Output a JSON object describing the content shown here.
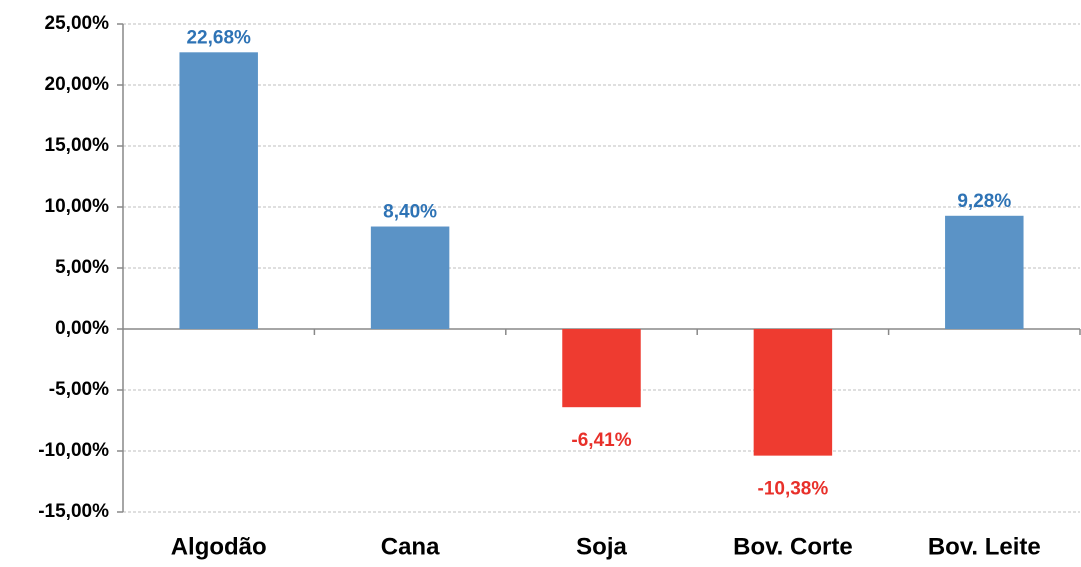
{
  "chart_data": {
    "type": "bar",
    "categories": [
      "Algodão",
      "Cana",
      "Soja",
      "Bov. Corte",
      "Bov. Leite"
    ],
    "values": [
      22.68,
      8.4,
      -6.41,
      -10.38,
      9.28
    ],
    "value_labels": [
      "22,68%",
      "8,40%",
      "-6,41%",
      "-10,38%",
      "9,28%"
    ],
    "colors": [
      "#5b93c6",
      "#5b93c6",
      "#ee3b30",
      "#ee3b30",
      "#5b93c6"
    ],
    "value_label_colors": [
      "#2e73b5",
      "#2e73b5",
      "#e8302a",
      "#e8302a",
      "#2e73b5"
    ],
    "ylim": [
      -15,
      25
    ],
    "yticks": [
      {
        "value": -15,
        "label": "-15,00%"
      },
      {
        "value": -10,
        "label": "-10,00%"
      },
      {
        "value": -5,
        "label": "-5,00%"
      },
      {
        "value": 0,
        "label": "0,00%"
      },
      {
        "value": 5,
        "label": "5,00%"
      },
      {
        "value": 10,
        "label": "10,00%"
      },
      {
        "value": 15,
        "label": "15,00%"
      },
      {
        "value": 20,
        "label": "20,00%"
      },
      {
        "value": 25,
        "label": "25,00%"
      }
    ],
    "grid": true
  }
}
